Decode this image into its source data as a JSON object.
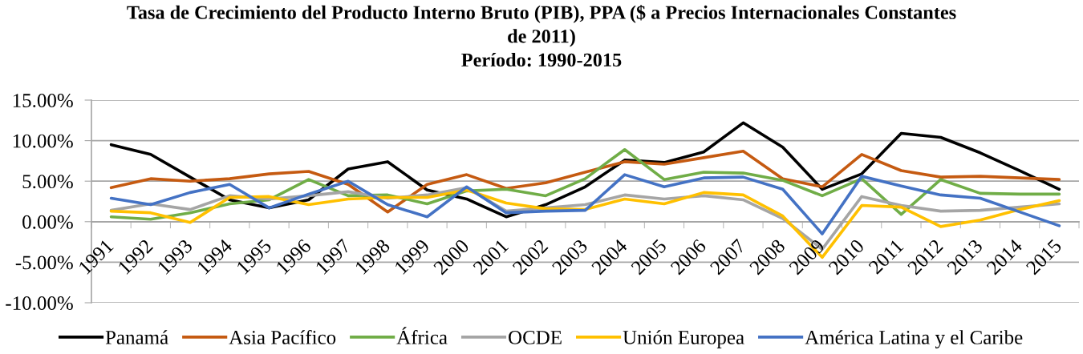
{
  "chart_data": {
    "type": "line",
    "title": "Tasa de Crecimiento del Producto Interno Bruto (PIB), PPA ($ a Precios Internacionales Constantes\nde 2011)\nPeríodo: 1990-2015",
    "categories": [
      "1991",
      "1992",
      "1993",
      "1994",
      "1995",
      "1996",
      "1997",
      "1998",
      "1999",
      "2000",
      "2001",
      "2002",
      "2003",
      "2004",
      "2005",
      "2006",
      "2007",
      "2008",
      "2009",
      "2010",
      "2011",
      "2012",
      "2013",
      "2014",
      "2015"
    ],
    "series": [
      {
        "name": "Panamá",
        "color": "#000000",
        "values": [
          9.5,
          8.3,
          5.5,
          2.7,
          1.7,
          2.7,
          6.5,
          7.4,
          3.9,
          2.8,
          0.6,
          2.1,
          4.3,
          7.6,
          7.3,
          8.6,
          12.2,
          9.2,
          4.0,
          5.9,
          10.9,
          10.4,
          8.5,
          6.3,
          4.0
        ]
      },
      {
        "name": "Asia Pacífico",
        "color": "#c55a11",
        "values": [
          4.2,
          5.3,
          5.0,
          5.3,
          5.9,
          6.2,
          4.6,
          1.2,
          4.6,
          5.8,
          4.1,
          4.8,
          6.1,
          7.4,
          7.1,
          7.9,
          8.7,
          5.3,
          4.3,
          8.3,
          6.3,
          5.5,
          5.6,
          5.4,
          5.2
        ]
      },
      {
        "name": "África",
        "color": "#70ad47",
        "values": [
          0.6,
          0.3,
          1.1,
          2.2,
          2.7,
          5.2,
          3.2,
          3.3,
          2.2,
          3.8,
          4.0,
          3.2,
          5.3,
          8.9,
          5.2,
          6.1,
          6.0,
          5.1,
          3.2,
          5.3,
          0.9,
          5.2,
          3.5,
          3.4,
          3.4
        ]
      },
      {
        "name": "OCDE",
        "color": "#a5a5a5",
        "values": [
          1.4,
          2.2,
          1.5,
          3.2,
          2.8,
          3.2,
          3.7,
          2.9,
          3.3,
          4.2,
          1.3,
          1.7,
          2.1,
          3.3,
          2.8,
          3.2,
          2.7,
          0.4,
          -3.4,
          3.1,
          2.0,
          1.3,
          1.4,
          1.8,
          2.2
        ]
      },
      {
        "name": "Unión Europea",
        "color": "#ffc000",
        "values": [
          1.3,
          1.1,
          -0.1,
          3.0,
          3.1,
          2.1,
          2.8,
          3.0,
          3.0,
          3.9,
          2.3,
          1.6,
          1.5,
          2.8,
          2.2,
          3.6,
          3.3,
          0.7,
          -4.4,
          2.0,
          1.8,
          -0.6,
          0.2,
          1.5,
          2.6
        ]
      },
      {
        "name": "América Latina y el Caribe",
        "color": "#4472c4",
        "values": [
          2.9,
          2.1,
          3.6,
          4.6,
          1.7,
          3.4,
          5.0,
          2.1,
          0.6,
          4.3,
          1.1,
          1.3,
          1.4,
          5.8,
          4.3,
          5.4,
          5.5,
          4.0,
          -1.5,
          5.6,
          4.4,
          3.3,
          2.9,
          1.2,
          -0.5
        ]
      }
    ],
    "ylim": [
      -10,
      15
    ],
    "yticks": [
      {
        "value": -10,
        "label": "-10.00%"
      },
      {
        "value": -5,
        "label": "-5.00%"
      },
      {
        "value": 0,
        "label": "0.00%"
      },
      {
        "value": 5,
        "label": "5.00%"
      },
      {
        "value": 10,
        "label": "10.00%"
      },
      {
        "value": 15,
        "label": "15.00%"
      }
    ],
    "grid": "y",
    "legend": "bottom"
  }
}
